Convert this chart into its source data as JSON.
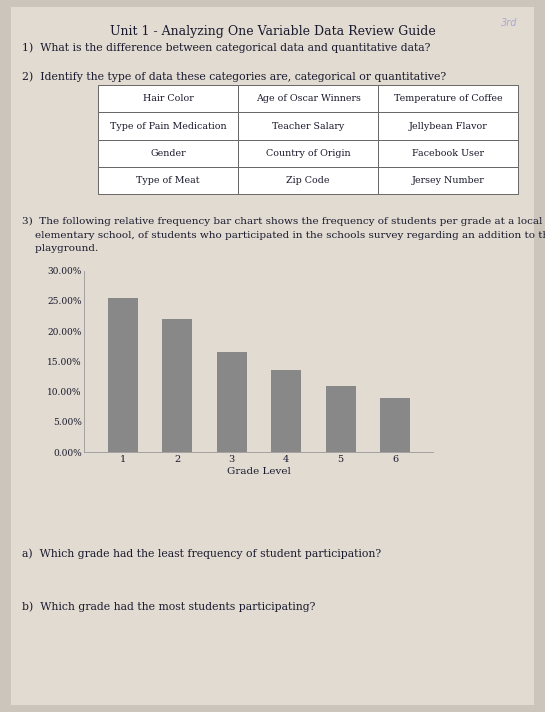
{
  "title": "Unit 1 - Analyzing One Variable Data Review Guide",
  "q1_text": "1)  What is the difference between categorical data and quantitative data?",
  "q2_text": "2)  Identify the type of data these categories are, categorical or quantitative?",
  "table_data": [
    [
      "Hair Color",
      "Age of Oscar Winners",
      "Temperature of Coffee"
    ],
    [
      "Type of Pain Medication",
      "Teacher Salary",
      "Jellybean Flavor"
    ],
    [
      "Gender",
      "Country of Origin",
      "Facebook User"
    ],
    [
      "Type of Meat",
      "Zip Code",
      "Jersey Number"
    ]
  ],
  "q3_line1": "3)  The following relative frequency bar chart shows the frequency of students per grade at a local",
  "q3_line2": "    elementary school, of students who participated in the schools survey regarding an addition to the",
  "q3_line3": "    playground.",
  "bar_grades": [
    1,
    2,
    3,
    4,
    5,
    6
  ],
  "bar_values": [
    25.5,
    22.0,
    16.5,
    13.5,
    11.0,
    9.0
  ],
  "bar_color": "#888888",
  "y_ticks": [
    0.0,
    5.0,
    10.0,
    15.0,
    20.0,
    25.0,
    30.0
  ],
  "y_tick_labels": [
    "0.00%",
    "5.00%",
    "10.00%",
    "15.00%",
    "20.00%",
    "25.00%",
    "30.00%"
  ],
  "xlabel": "Grade Level",
  "qa_text": "a)  Which grade had the least frequency of student participation?",
  "qb_text": "b)  Which grade had the most students participating?",
  "bg_color": "#ccc5bb",
  "paper_color": "#e2dbd2",
  "text_color": "#1a1a2e",
  "table_border_color": "#666666",
  "corner_text": "3rd"
}
